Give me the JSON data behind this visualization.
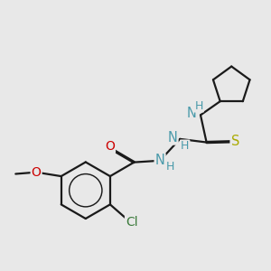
{
  "bg_color": "#e8e8e8",
  "bond_color": "#1a1a1a",
  "atom_colors": {
    "N": "#4a9aaa",
    "O": "#cc0000",
    "S": "#aaaa00",
    "Cl": "#3a7a3a",
    "C": "#1a1a1a",
    "H": "#4a9aaa"
  },
  "font_size": 9.5,
  "line_width": 1.6
}
